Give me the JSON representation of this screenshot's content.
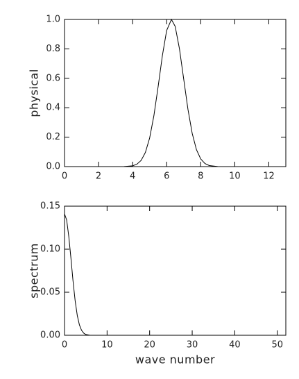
{
  "chart_data": [
    {
      "type": "line",
      "ylabel": "physical",
      "color": "#000000",
      "x": [
        0,
        1,
        2,
        3,
        3.5,
        4,
        4.25,
        4.5,
        4.75,
        5,
        5.25,
        5.5,
        5.75,
        6,
        6.28,
        6.5,
        6.75,
        7,
        7.25,
        7.5,
        7.75,
        8,
        8.25,
        8.5,
        9,
        10,
        11,
        12.57
      ],
      "values": [
        0,
        0,
        0,
        0,
        0.0004,
        0.0055,
        0.016,
        0.042,
        0.096,
        0.194,
        0.346,
        0.544,
        0.755,
        0.925,
        1,
        0.953,
        0.802,
        0.596,
        0.39,
        0.226,
        0.115,
        0.052,
        0.021,
        0.0072,
        0.0006,
        0,
        0,
        0
      ],
      "xlim": [
        0,
        13
      ],
      "xticks": [
        0,
        2,
        4,
        6,
        8,
        10,
        12
      ],
      "ylim": [
        0,
        1
      ],
      "yticks": [
        {
          "value": 0,
          "label": "0.0"
        },
        {
          "value": 0.2,
          "label": "0.2"
        },
        {
          "value": 0.4,
          "label": "0.4"
        },
        {
          "value": 0.6,
          "label": "0.6"
        },
        {
          "value": 0.8,
          "label": "0.8"
        },
        {
          "value": 1,
          "label": "1.0"
        }
      ]
    },
    {
      "type": "line",
      "ylabel": "spectrum",
      "xlabel": "wave number",
      "color": "#000000",
      "x": [
        0,
        0.5,
        1,
        1.5,
        2,
        2.5,
        3,
        3.5,
        4,
        4.5,
        5,
        6,
        10,
        20,
        30,
        40,
        51
      ],
      "values": [
        0.141,
        0.134,
        0.115,
        0.09,
        0.063,
        0.04,
        0.023,
        0.012,
        0.0058,
        0.0025,
        0.0009,
        0,
        0,
        0,
        0,
        0,
        0
      ],
      "xlim": [
        0,
        52
      ],
      "xticks": [
        0,
        10,
        20,
        30,
        40,
        50
      ],
      "ylim": [
        0,
        0.15
      ],
      "yticks": [
        {
          "value": 0,
          "label": "0.00"
        },
        {
          "value": 0.05,
          "label": "0.05"
        },
        {
          "value": 0.1,
          "label": "0.10"
        },
        {
          "value": 0.15,
          "label": "0.15"
        }
      ]
    }
  ]
}
